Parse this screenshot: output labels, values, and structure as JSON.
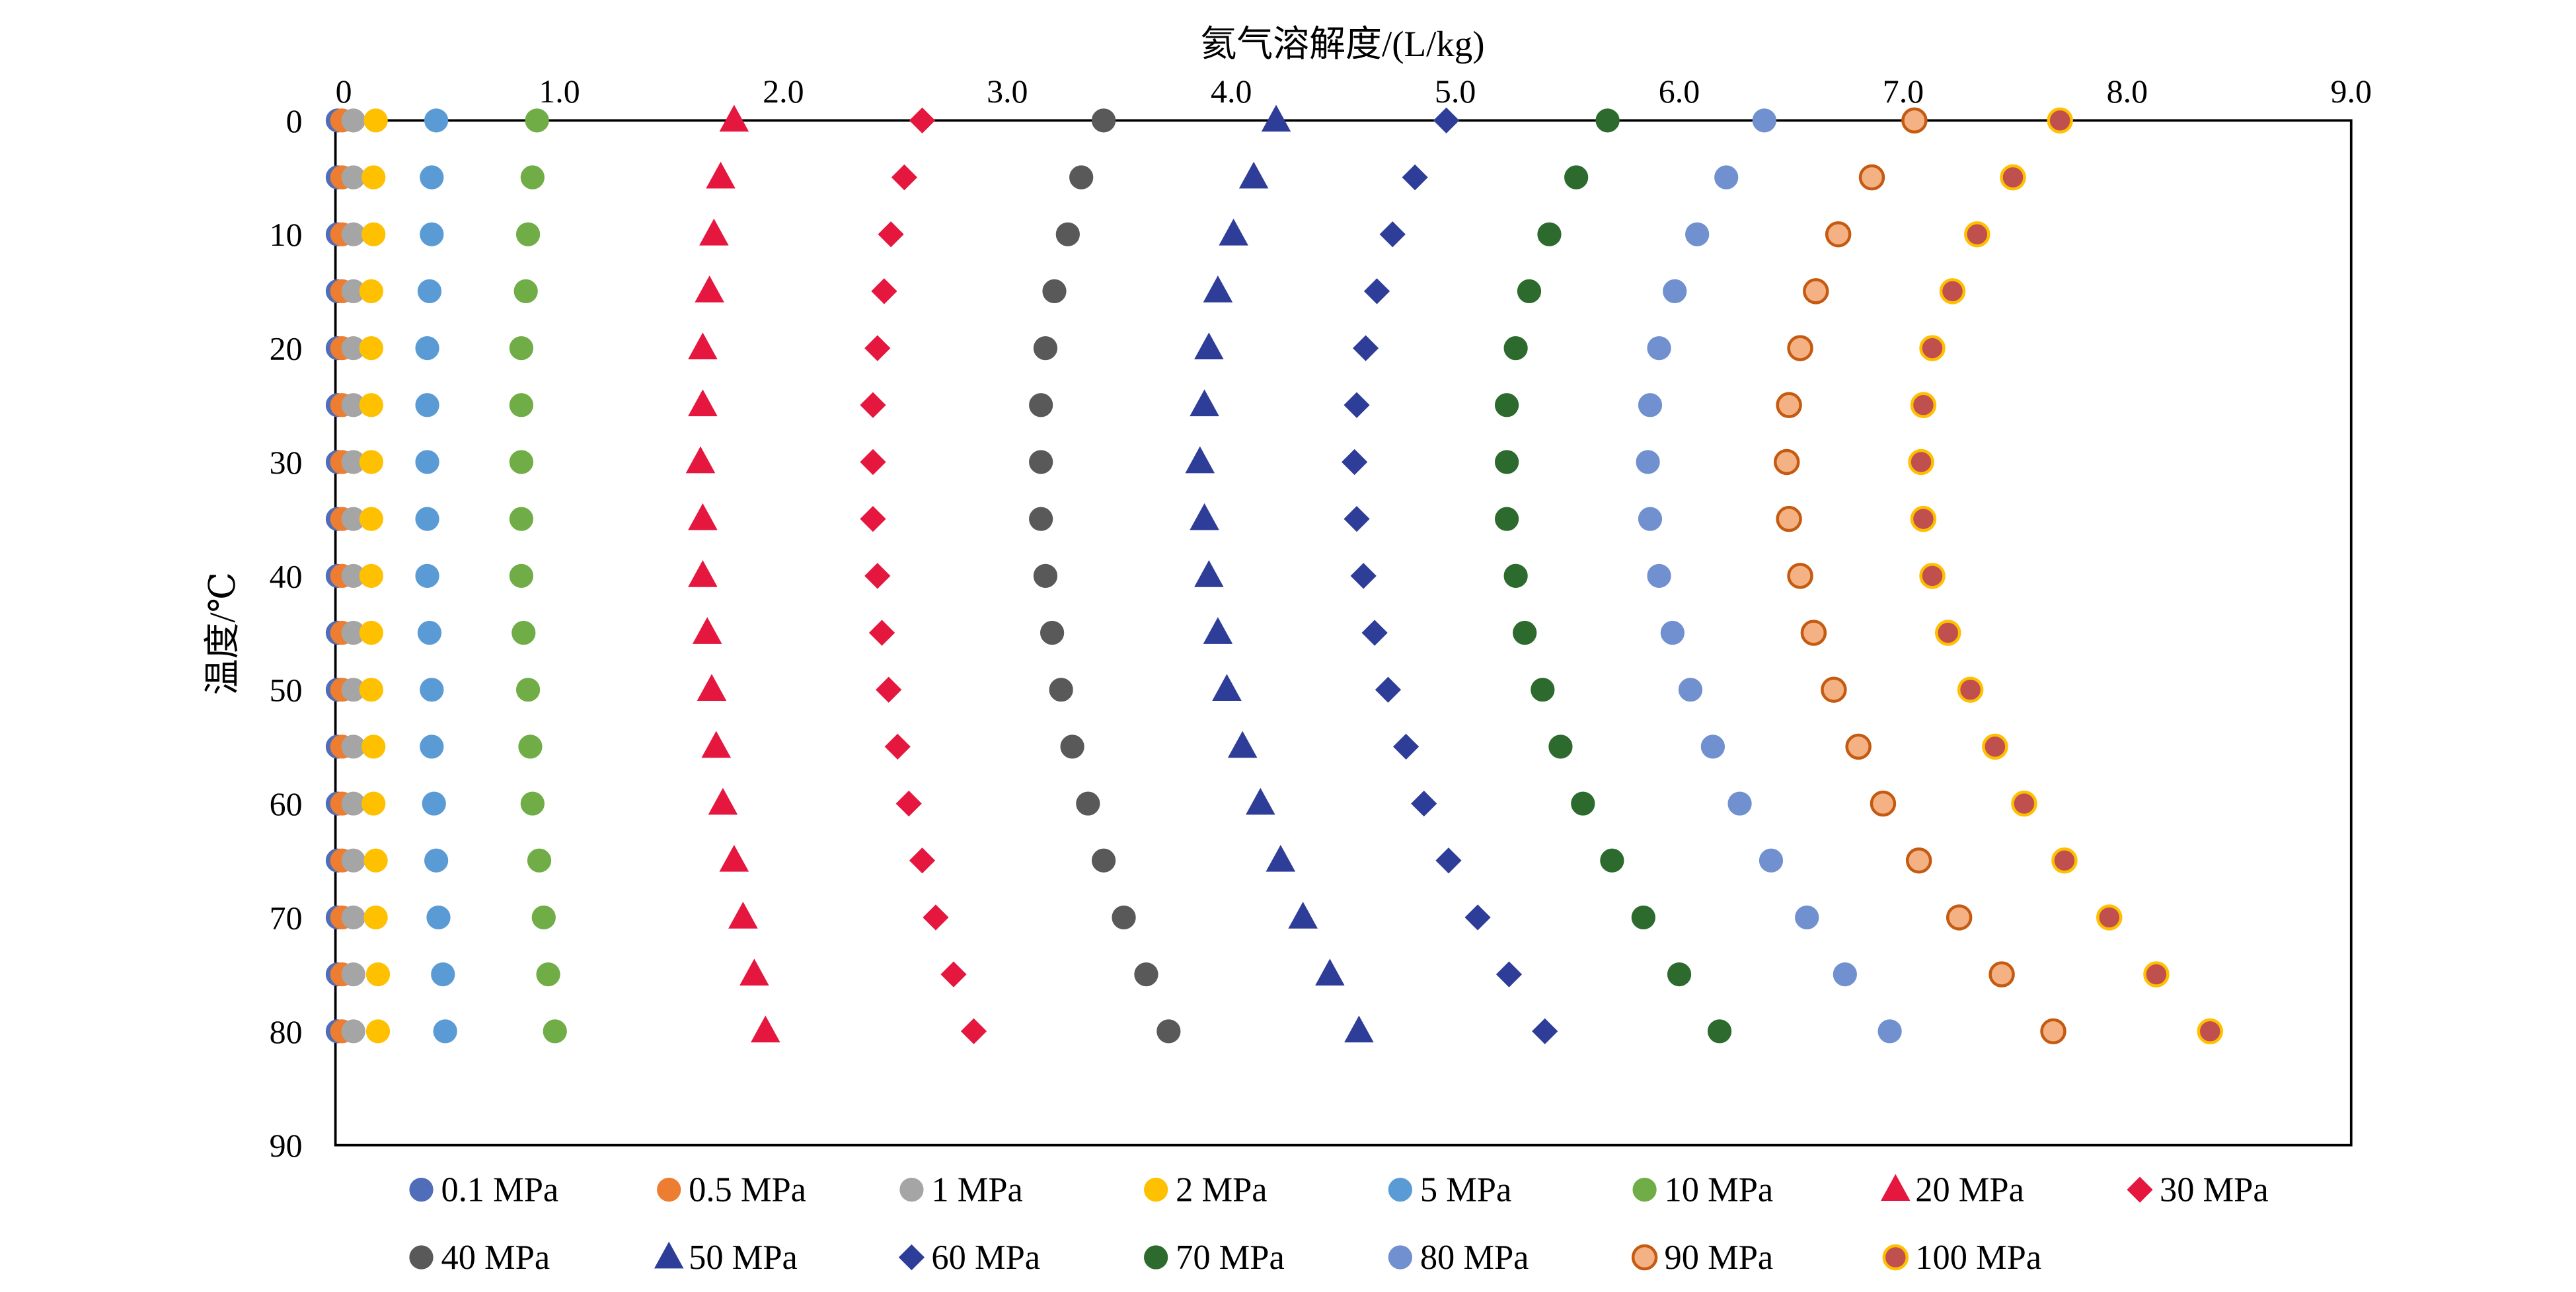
{
  "chart_data": {
    "type": "scatter",
    "title": "",
    "xlabel": "氦气溶解度/(L/kg)",
    "ylabel": "温度/℃",
    "xlim": [
      0,
      9.0
    ],
    "ylim": [
      0,
      90
    ],
    "y_inverted": true,
    "x_axis_position": "top",
    "grid": false,
    "legend_position": "bottom",
    "xticks": [
      "0",
      "1.0",
      "2.0",
      "3.0",
      "4.0",
      "5.0",
      "6.0",
      "7.0",
      "8.0",
      "9.0"
    ],
    "yticks": [
      "0",
      "10",
      "20",
      "30",
      "40",
      "50",
      "60",
      "70",
      "80",
      "90"
    ],
    "temperature": [
      0,
      5,
      10,
      15,
      20,
      25,
      30,
      35,
      40,
      45,
      50,
      55,
      60,
      65,
      70,
      75,
      80
    ],
    "series": [
      {
        "name": "0.1 MPa",
        "marker": "circle",
        "fill": "#4F6DB8",
        "stroke": "#4F6DB8",
        "values": [
          0.01,
          0.01,
          0.01,
          0.01,
          0.01,
          0.01,
          0.01,
          0.01,
          0.01,
          0.01,
          0.01,
          0.01,
          0.01,
          0.01,
          0.01,
          0.01,
          0.01
        ]
      },
      {
        "name": "0.5 MPa",
        "marker": "circle",
        "fill": "#ED7D31",
        "stroke": "#ED7D31",
        "values": [
          0.03,
          0.03,
          0.03,
          0.03,
          0.03,
          0.03,
          0.03,
          0.03,
          0.03,
          0.03,
          0.03,
          0.03,
          0.03,
          0.03,
          0.03,
          0.03,
          0.03
        ]
      },
      {
        "name": "1 MPa",
        "marker": "circle",
        "fill": "#A5A5A5",
        "stroke": "#A5A5A5",
        "values": [
          0.08,
          0.08,
          0.08,
          0.08,
          0.08,
          0.08,
          0.08,
          0.08,
          0.08,
          0.08,
          0.08,
          0.08,
          0.08,
          0.08,
          0.08,
          0.08,
          0.08
        ]
      },
      {
        "name": "2 MPa",
        "marker": "circle",
        "fill": "#FFC000",
        "stroke": "#FFC000",
        "values": [
          0.18,
          0.17,
          0.17,
          0.16,
          0.16,
          0.16,
          0.16,
          0.16,
          0.16,
          0.16,
          0.16,
          0.17,
          0.17,
          0.18,
          0.18,
          0.19,
          0.19
        ]
      },
      {
        "name": "5 MPa",
        "marker": "circle",
        "fill": "#5B9BD5",
        "stroke": "#5B9BD5",
        "values": [
          0.45,
          0.43,
          0.43,
          0.42,
          0.41,
          0.41,
          0.41,
          0.41,
          0.41,
          0.42,
          0.43,
          0.43,
          0.44,
          0.45,
          0.46,
          0.48,
          0.49
        ]
      },
      {
        "name": "10 MPa",
        "marker": "circle",
        "fill": "#70AD47",
        "stroke": "#70AD47",
        "values": [
          0.9,
          0.88,
          0.86,
          0.85,
          0.83,
          0.83,
          0.83,
          0.83,
          0.83,
          0.84,
          0.86,
          0.87,
          0.88,
          0.91,
          0.93,
          0.95,
          0.98
        ]
      },
      {
        "name": "20 MPa",
        "marker": "triangle",
        "fill": "#E5173F",
        "stroke": "#E5173F",
        "values": [
          1.78,
          1.72,
          1.69,
          1.67,
          1.64,
          1.64,
          1.63,
          1.64,
          1.64,
          1.66,
          1.68,
          1.7,
          1.73,
          1.78,
          1.82,
          1.87,
          1.92
        ]
      },
      {
        "name": "30 MPa",
        "marker": "diamond",
        "fill": "#E5173F",
        "stroke": "#E5173F",
        "values": [
          2.62,
          2.54,
          2.48,
          2.45,
          2.42,
          2.4,
          2.4,
          2.4,
          2.42,
          2.44,
          2.47,
          2.51,
          2.56,
          2.62,
          2.68,
          2.76,
          2.85
        ]
      },
      {
        "name": "40 MPa",
        "marker": "circle",
        "fill": "#595959",
        "stroke": "#595959",
        "values": [
          3.43,
          3.33,
          3.27,
          3.21,
          3.17,
          3.15,
          3.15,
          3.15,
          3.17,
          3.2,
          3.24,
          3.29,
          3.36,
          3.43,
          3.52,
          3.62,
          3.72
        ]
      },
      {
        "name": "50 MPa",
        "marker": "triangle",
        "fill": "#2E3D98",
        "stroke": "#2E3D98",
        "values": [
          4.2,
          4.1,
          4.01,
          3.94,
          3.9,
          3.88,
          3.86,
          3.88,
          3.9,
          3.94,
          3.98,
          4.05,
          4.13,
          4.22,
          4.32,
          4.44,
          4.57
        ]
      },
      {
        "name": "60 MPa",
        "marker": "diamond",
        "fill": "#2E3D98",
        "stroke": "#2E3D98",
        "values": [
          4.96,
          4.82,
          4.72,
          4.65,
          4.6,
          4.56,
          4.55,
          4.56,
          4.59,
          4.64,
          4.7,
          4.78,
          4.86,
          4.97,
          5.1,
          5.24,
          5.4
        ]
      },
      {
        "name": "70 MPa",
        "marker": "circle",
        "fill": "#2D6A2D",
        "stroke": "#2D6A2D",
        "values": [
          5.68,
          5.54,
          5.42,
          5.33,
          5.27,
          5.23,
          5.23,
          5.23,
          5.27,
          5.31,
          5.39,
          5.47,
          5.57,
          5.7,
          5.84,
          6.0,
          6.18
        ]
      },
      {
        "name": "80 MPa",
        "marker": "circle",
        "fill": "#7190CF",
        "stroke": "#7190CF",
        "values": [
          6.38,
          6.21,
          6.08,
          5.98,
          5.91,
          5.87,
          5.86,
          5.87,
          5.91,
          5.97,
          6.05,
          6.15,
          6.27,
          6.41,
          6.57,
          6.74,
          6.94
        ]
      },
      {
        "name": "90 MPa",
        "marker": "circle",
        "fill": "#F4B183",
        "stroke": "#C55A11",
        "values": [
          7.05,
          6.86,
          6.71,
          6.61,
          6.54,
          6.49,
          6.48,
          6.49,
          6.54,
          6.6,
          6.69,
          6.8,
          6.91,
          7.07,
          7.25,
          7.44,
          7.67
        ]
      },
      {
        "name": "100 MPa",
        "marker": "circle",
        "fill": "#C0504D",
        "stroke": "#FFC000",
        "values": [
          7.7,
          7.49,
          7.33,
          7.22,
          7.13,
          7.09,
          7.08,
          7.09,
          7.13,
          7.2,
          7.3,
          7.41,
          7.54,
          7.72,
          7.92,
          8.13,
          8.37
        ]
      }
    ]
  }
}
